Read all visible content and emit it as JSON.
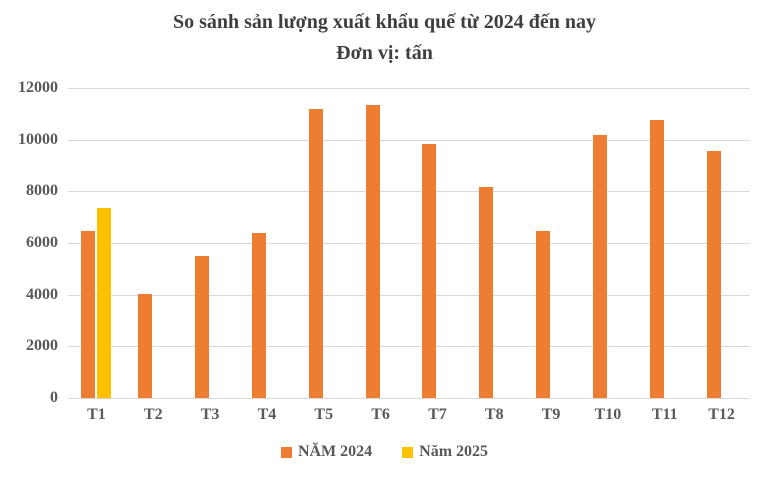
{
  "chart_data": {
    "type": "bar",
    "title": "So sánh sản lượng xuất khẩu quế từ 2024 đến nay",
    "subtitle": "Đơn vị: tấn",
    "categories": [
      "T1",
      "T2",
      "T3",
      "T4",
      "T5",
      "T6",
      "T7",
      "T8",
      "T9",
      "T10",
      "T11",
      "T12"
    ],
    "series": [
      {
        "name": "NĂM 2024",
        "year": "2024",
        "color": "#ED7D31",
        "values": [
          6450,
          4020,
          5480,
          6370,
          11200,
          11360,
          9850,
          8180,
          6450,
          10180,
          10780,
          9580
        ]
      },
      {
        "name": "Năm 2025",
        "year": "2025",
        "color": "#FFC000",
        "values": [
          7340,
          null,
          null,
          null,
          null,
          null,
          null,
          null,
          null,
          null,
          null,
          null
        ]
      }
    ],
    "ylim": [
      0,
      12000
    ],
    "yticks": [
      0,
      2000,
      4000,
      6000,
      8000,
      10000,
      12000
    ],
    "grid": true,
    "legend_position": "bottom"
  },
  "colors": {
    "bar_2024": "#ED7D31",
    "bar_2025": "#FFC000",
    "gridline": "#D9D9D9",
    "title_text": "#3F3F3F",
    "axis_text": "#595959"
  }
}
